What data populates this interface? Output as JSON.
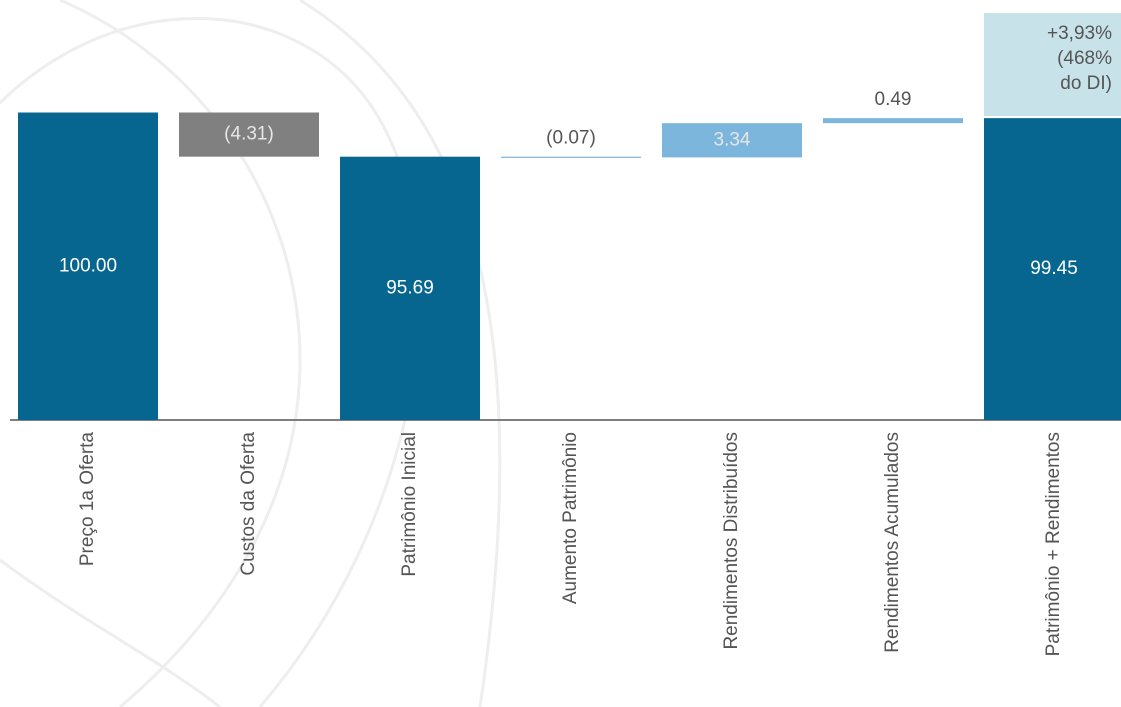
{
  "chart_data": {
    "type": "waterfall",
    "categories": [
      "Preço 1a Oferta",
      "Custos da Oferta",
      "Patrimônio Inicial",
      "Aumento Patrimônio",
      "Rendimentos Distribuídos",
      "Rendimentos Acumulados",
      "Patrimônio + Rendimentos"
    ],
    "values": [
      100,
      -4.31,
      95.69,
      -0.07,
      3.34,
      0.49,
      99.45
    ],
    "value_labels": [
      "100.00",
      "(4.31)",
      "95.69",
      "(0.07)",
      "3.34",
      "0.49",
      "99.45"
    ],
    "measure": [
      "absolute",
      "relative",
      "absolute",
      "relative",
      "relative",
      "relative",
      "absolute"
    ],
    "colors": [
      "#07668f",
      "#808080",
      "#07668f",
      "#7db6dc",
      "#7db6dc",
      "#7db6dc",
      "#07668f"
    ],
    "annotation": {
      "lines": [
        "+3,93%",
        "(468%",
        "do DI)"
      ],
      "color": "#c8e2ea"
    },
    "ylim": [
      70,
      110
    ]
  }
}
